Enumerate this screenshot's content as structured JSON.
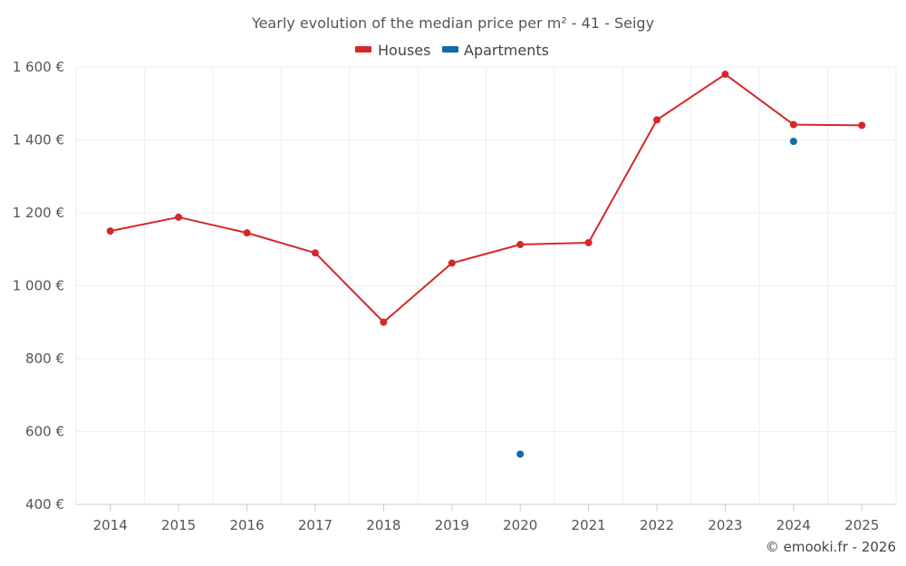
{
  "chart_data": {
    "type": "line",
    "title": "Yearly evolution of the median price per m² - 41 - Seigy",
    "xlabel": "",
    "ylabel": "",
    "ylim": [
      400,
      1600
    ],
    "y_ticks": [
      400,
      600,
      800,
      1000,
      1200,
      1400,
      1600
    ],
    "y_tick_labels": [
      "400 €",
      "600 €",
      "800 €",
      "1 000 €",
      "1 200 €",
      "1 400 €",
      "1 600 €"
    ],
    "categories": [
      "2014",
      "2015",
      "2016",
      "2017",
      "2018",
      "2019",
      "2020",
      "2021",
      "2022",
      "2023",
      "2024",
      "2025"
    ],
    "grid": true,
    "legend_position": "top-center",
    "series": [
      {
        "name": "Houses",
        "color": "#d62728",
        "values": [
          1150,
          1188,
          1145,
          1090,
          900,
          1062,
          1113,
          1118,
          1455,
          1580,
          1442,
          1440
        ]
      },
      {
        "name": "Apartments",
        "color": "#0e6ba8",
        "values": [
          null,
          null,
          null,
          null,
          null,
          null,
          538,
          null,
          null,
          null,
          1396,
          null
        ]
      }
    ],
    "credit": "© emooki.fr - 2026"
  }
}
